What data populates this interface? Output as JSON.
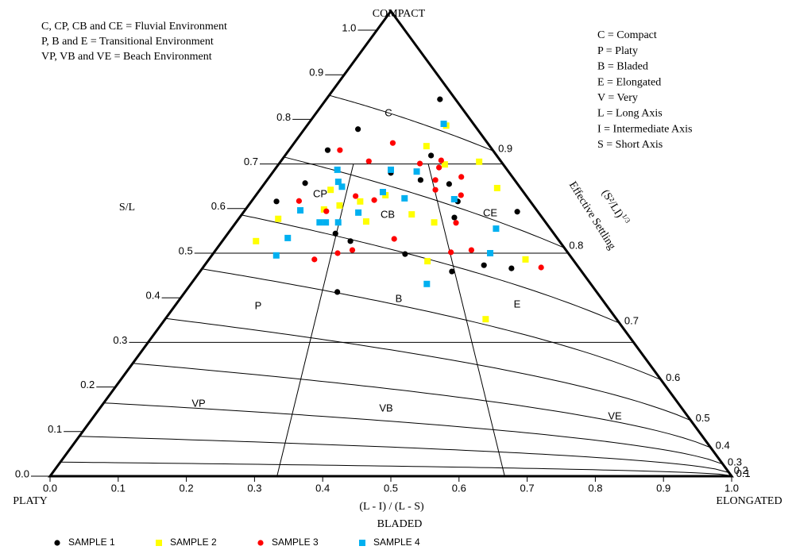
{
  "chart_data": {
    "type": "ternary",
    "corner_labels": {
      "top": "COMPACT",
      "left": "PLATY",
      "right": "ELONGATED",
      "bottom": "BLADED"
    },
    "xlabel": "(L - I) / (L - S)",
    "ylabel": "S/L",
    "settling_label": "Effective Settling",
    "settling_formula": "(S²/LI)",
    "settling_exponent": "1/3",
    "notes_left": [
      "C, CP, CB and CE = Fluvial Environment",
      "P, B and E = Transitional Environment",
      "VP, VB and VE = Beach Environment"
    ],
    "notes_right": [
      "C = Compact",
      "P = Platy",
      "B = Bladed",
      "E = Elongated",
      "V = Very",
      "L = Long Axis",
      "I = Intermediate Axis",
      "S = Short Axis"
    ],
    "zones": [
      "C",
      "CP",
      "CB",
      "CE",
      "P",
      "B",
      "E",
      "VP",
      "VB",
      "VE"
    ],
    "xlim": [
      0,
      1
    ],
    "ylim": [
      0,
      1
    ],
    "xticks": [
      {
        "value": 0,
        "label": "0.0"
      },
      0.1,
      0.2,
      0.3,
      0.4,
      0.5,
      0.6,
      0.7,
      0.8,
      0.9,
      {
        "value": 1,
        "label": "1.0"
      }
    ],
    "yticks": [
      {
        "value": 0,
        "label": "0.0"
      },
      0.1,
      0.2,
      0.3,
      0.4,
      0.5,
      0.6,
      0.7,
      0.8,
      0.9,
      {
        "value": 1,
        "label": "1.0"
      }
    ],
    "settling_ticks": [
      0.1,
      0.2,
      0.3,
      0.4,
      0.5,
      0.6,
      0.7,
      0.8,
      0.9
    ],
    "sl_boundaries": [
      0.3,
      0.5,
      0.7
    ],
    "ratio_boundaries": [
      0.333,
      0.667
    ],
    "series": [
      {
        "name": "SAMPLE 1",
        "color": "#000000",
        "marker": "circle",
        "x": [
          0.88,
          0.31,
          0.19,
          0.69,
          0.16,
          0.09,
          0.62,
          0.73,
          0.74,
          0.93,
          0.71,
          0.33,
          0.38,
          0.54,
          0.66,
          0.75,
          0.82,
          0.37,
          0.5
        ],
        "y": [
          0.845,
          0.778,
          0.731,
          0.719,
          0.657,
          0.616,
          0.664,
          0.655,
          0.616,
          0.593,
          0.58,
          0.544,
          0.527,
          0.498,
          0.459,
          0.473,
          0.466,
          0.413,
          0.68
        ]
      },
      {
        "name": "SAMPLE 2",
        "color": "#ffff00",
        "marker": "square",
        "x": [
          0.83,
          0.68,
          0.9,
          0.74,
          0.27,
          0.91,
          0.48,
          0.32,
          0.39,
          0.57,
          0.42,
          0.13,
          0.64,
          0.1,
          0.6,
          0.87,
          0.71,
          0.27
        ],
        "y": [
          0.786,
          0.74,
          0.705,
          0.699,
          0.642,
          0.646,
          0.63,
          0.607,
          0.616,
          0.587,
          0.571,
          0.577,
          0.569,
          0.527,
          0.482,
          0.486,
          0.352,
          0.598
        ]
      },
      {
        "name": "SAMPLE 3",
        "color": "#ff0000",
        "marker": "circle",
        "x": [
          0.25,
          0.51,
          0.73,
          0.4,
          0.63,
          0.71,
          0.68,
          0.79,
          0.67,
          0.76,
          0.37,
          0.17,
          0.28,
          0.44,
          0.71,
          0.51,
          0.39,
          0.35,
          0.29,
          0.67,
          0.73,
          0.9
        ],
        "y": [
          0.731,
          0.747,
          0.708,
          0.706,
          0.701,
          0.692,
          0.664,
          0.671,
          0.642,
          0.63,
          0.628,
          0.617,
          0.594,
          0.619,
          0.568,
          0.532,
          0.507,
          0.5,
          0.486,
          0.502,
          0.507,
          0.468
        ]
      },
      {
        "name": "SAMPLE 4",
        "color": "#00b0f0",
        "marker": "square",
        "x": [
          0.82,
          0.27,
          0.29,
          0.31,
          0.5,
          0.61,
          0.47,
          0.55,
          0.73,
          0.19,
          0.39,
          0.27,
          0.29,
          0.33,
          0.19,
          0.18,
          0.83,
          0.78,
          0.59
        ],
        "y": [
          0.79,
          0.687,
          0.66,
          0.649,
          0.687,
          0.683,
          0.637,
          0.623,
          0.621,
          0.596,
          0.591,
          0.569,
          0.569,
          0.569,
          0.534,
          0.495,
          0.555,
          0.5,
          0.431
        ]
      }
    ]
  }
}
